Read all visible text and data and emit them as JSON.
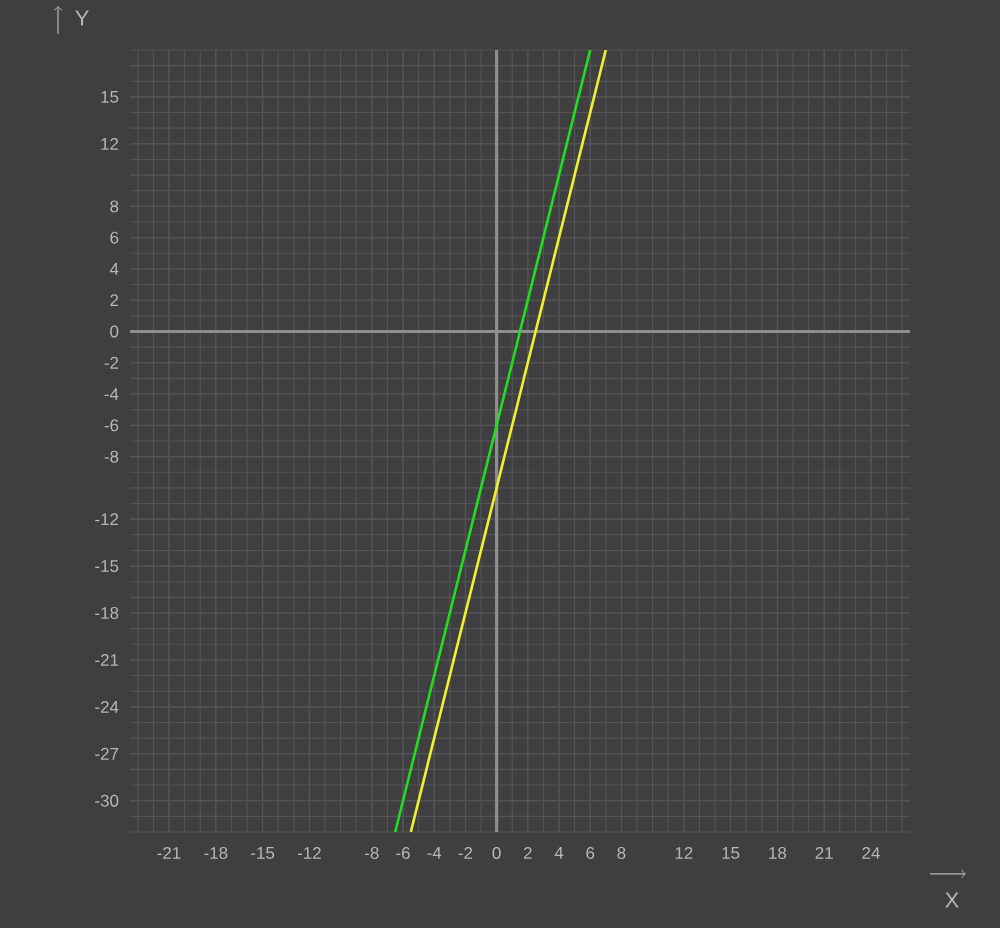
{
  "chart_data": {
    "type": "line",
    "xlabel": "X",
    "ylabel": "Y",
    "xlim": [
      -23.5,
      26.5
    ],
    "ylim": [
      -32,
      18
    ],
    "xticks": [
      -21,
      -18,
      -15,
      -12,
      -8,
      -6,
      -4,
      -2,
      0,
      2,
      4,
      6,
      8,
      12,
      15,
      18,
      21,
      24
    ],
    "yticks": [
      -30,
      -27,
      -24,
      -21,
      -18,
      -15,
      -12,
      -8,
      -6,
      -4,
      -2,
      0,
      2,
      4,
      6,
      8,
      12,
      15
    ],
    "grid": true,
    "series": [
      {
        "color": "#22dd22",
        "x": [
          -6.5,
          6
        ],
        "values": [
          -32,
          18
        ]
      },
      {
        "color": "#f2f22a",
        "x": [
          -5.5,
          7
        ],
        "values": [
          -32,
          18
        ]
      }
    ]
  }
}
